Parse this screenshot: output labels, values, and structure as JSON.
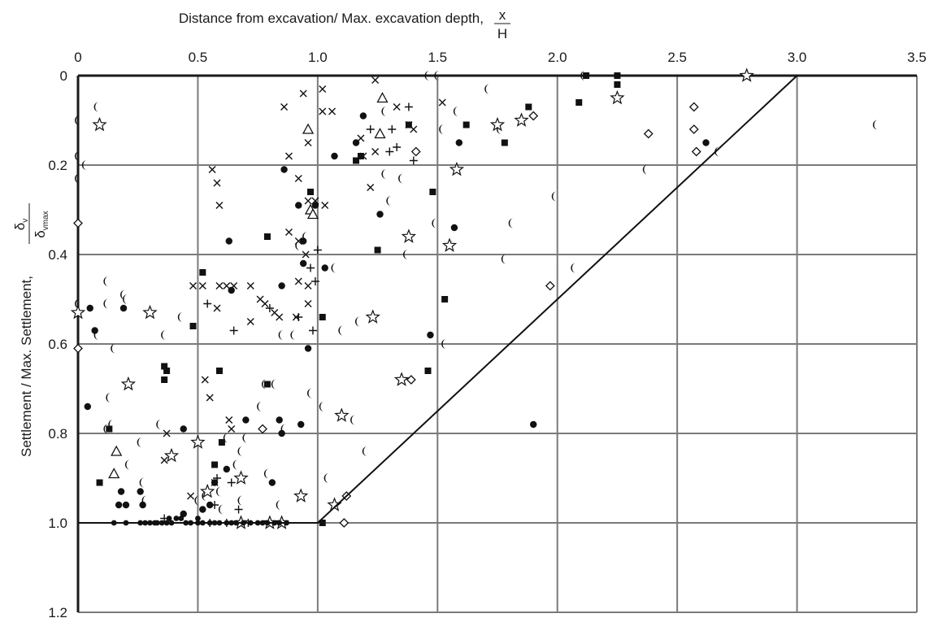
{
  "chart_data": {
    "type": "scatter",
    "xlabel": "Distance from excavation/ Max. excavation depth,",
    "xlabel_fraction": {
      "numerator": "x",
      "denominator": "H"
    },
    "ylabel": "Settlement / Max. Settlement,",
    "ylabel_fraction": {
      "numerator": "δ",
      "numerator_sub": "v",
      "denominator": "δ",
      "denominator_sub": "vmax"
    },
    "xlim": [
      0,
      3.5
    ],
    "ylim": [
      0,
      1.2
    ],
    "y_inverted": true,
    "x_axis_position": "top",
    "grid": true,
    "xticks": [
      0,
      0.5,
      1.0,
      1.5,
      2.0,
      2.5,
      3.0,
      3.5
    ],
    "xtick_labels": [
      "0",
      "0.5",
      "1.0",
      "1.5",
      "2.0",
      "2.5",
      "3.0",
      "3.5"
    ],
    "yticks": [
      0,
      0.2,
      0.4,
      0.6,
      0.8,
      1.0,
      1.2
    ],
    "ytick_labels": [
      "0",
      "0.2",
      "0.4",
      "0.6",
      "0.8",
      "1.0",
      "1.2"
    ],
    "envelope": {
      "x": [
        0,
        1.0,
        3.0
      ],
      "y": [
        1.0,
        1.0,
        0
      ]
    },
    "series": [
      {
        "marker": "moon",
        "points": [
          [
            0.08,
            0.07
          ],
          [
            0.03,
            0.2
          ],
          [
            0.0,
            0.23
          ],
          [
            0.0,
            0.51
          ],
          [
            0.08,
            0.58
          ],
          [
            0.13,
            0.72
          ],
          [
            0.12,
            0.79
          ],
          [
            0.15,
            0.61
          ],
          [
            0.12,
            0.46
          ],
          [
            0.12,
            0.51
          ],
          [
            0.2,
            0.5
          ],
          [
            0.19,
            0.49
          ],
          [
            0.36,
            0.58
          ],
          [
            0.21,
            0.87
          ],
          [
            0.26,
            0.82
          ],
          [
            0.27,
            0.91
          ],
          [
            0.28,
            0.95
          ],
          [
            0.5,
            0.95
          ],
          [
            0.53,
            0.94
          ],
          [
            0.59,
            0.93
          ],
          [
            0.6,
            0.97
          ],
          [
            0.62,
            0.81
          ],
          [
            0.66,
            0.87
          ],
          [
            0.68,
            0.84
          ],
          [
            0.7,
            0.81
          ],
          [
            0.76,
            0.74
          ],
          [
            0.78,
            0.69
          ],
          [
            0.82,
            0.69
          ],
          [
            0.86,
            0.79
          ],
          [
            0.85,
            0.58
          ],
          [
            0.95,
            0.36
          ],
          [
            0.92,
            0.38
          ],
          [
            0.9,
            0.58
          ],
          [
            0.97,
            0.71
          ],
          [
            1.02,
            0.74
          ],
          [
            1.1,
            0.57
          ],
          [
            1.15,
            0.77
          ],
          [
            1.07,
            0.43
          ],
          [
            1.28,
            0.22
          ],
          [
            1.3,
            0.28
          ],
          [
            1.35,
            0.23
          ],
          [
            1.37,
            0.4
          ],
          [
            1.49,
            0.33
          ],
          [
            1.52,
            0.12
          ],
          [
            1.53,
            0.6
          ],
          [
            1.56,
            0.38
          ],
          [
            1.58,
            0.08
          ],
          [
            1.71,
            0.03
          ],
          [
            1.76,
            0.12
          ],
          [
            1.78,
            0.41
          ],
          [
            1.81,
            0.33
          ],
          [
            1.99,
            0.27
          ],
          [
            2.07,
            0.43
          ],
          [
            2.37,
            0.21
          ],
          [
            2.67,
            0.17
          ],
          [
            3.33,
            0.11
          ],
          [
            1.2,
            0.84
          ],
          [
            1.28,
            0.08
          ],
          [
            1.17,
            0.55
          ],
          [
            1.04,
            0.9
          ],
          [
            1.5,
            0.0
          ],
          [
            1.46,
            0.0
          ],
          [
            2.11,
            0.0
          ],
          [
            0.0,
            0.1
          ],
          [
            0.0,
            0.18
          ],
          [
            0.43,
            0.54
          ],
          [
            0.34,
            0.78
          ],
          [
            0.14,
            0.78
          ],
          [
            0.79,
            0.89
          ],
          [
            0.84,
            0.96
          ],
          [
            0.68,
            0.95
          ]
        ]
      },
      {
        "marker": "dot",
        "points": [
          [
            0.05,
            0.52
          ],
          [
            0.04,
            0.74
          ],
          [
            0.07,
            0.57
          ],
          [
            0.17,
            0.96
          ],
          [
            0.2,
            0.96
          ],
          [
            0.18,
            0.93
          ],
          [
            0.26,
            0.93
          ],
          [
            0.27,
            0.96
          ],
          [
            0.44,
            0.79
          ],
          [
            0.44,
            0.98
          ],
          [
            0.52,
            0.97
          ],
          [
            0.55,
            0.96
          ],
          [
            0.57,
            0.91
          ],
          [
            0.62,
            0.88
          ],
          [
            0.63,
            0.37
          ],
          [
            0.64,
            0.48
          ],
          [
            0.7,
            0.77
          ],
          [
            0.85,
            0.47
          ],
          [
            0.84,
            0.77
          ],
          [
            0.85,
            0.8
          ],
          [
            0.86,
            0.21
          ],
          [
            0.92,
            0.29
          ],
          [
            0.94,
            0.37
          ],
          [
            0.96,
            0.61
          ],
          [
            0.99,
            0.29
          ],
          [
            1.03,
            0.43
          ],
          [
            1.07,
            0.18
          ],
          [
            1.16,
            0.15
          ],
          [
            1.19,
            0.09
          ],
          [
            1.26,
            0.31
          ],
          [
            1.57,
            0.34
          ],
          [
            1.59,
            0.15
          ],
          [
            1.9,
            0.78
          ],
          [
            2.62,
            0.15
          ],
          [
            0.81,
            0.91
          ],
          [
            0.93,
            0.78
          ],
          [
            1.47,
            0.58
          ],
          [
            0.94,
            0.42
          ],
          [
            0.19,
            0.52
          ]
        ]
      },
      {
        "marker": "square",
        "points": [
          [
            0.09,
            0.91
          ],
          [
            0.13,
            0.79
          ],
          [
            0.36,
            0.65
          ],
          [
            0.36,
            0.68
          ],
          [
            0.37,
            0.66
          ],
          [
            0.48,
            0.56
          ],
          [
            0.52,
            0.44
          ],
          [
            0.59,
            0.66
          ],
          [
            0.57,
            0.87
          ],
          [
            0.6,
            0.82
          ],
          [
            0.79,
            0.36
          ],
          [
            0.79,
            0.69
          ],
          [
            0.97,
            0.26
          ],
          [
            1.02,
            0.54
          ],
          [
            1.16,
            0.19
          ],
          [
            1.18,
            0.18
          ],
          [
            1.25,
            0.39
          ],
          [
            1.38,
            0.11
          ],
          [
            1.48,
            0.26
          ],
          [
            1.53,
            0.5
          ],
          [
            1.46,
            0.66
          ],
          [
            1.62,
            0.11
          ],
          [
            1.78,
            0.15
          ],
          [
            1.88,
            0.07
          ],
          [
            2.09,
            0.06
          ],
          [
            2.12,
            0.0
          ],
          [
            2.25,
            0.0
          ],
          [
            2.25,
            0.02
          ],
          [
            1.02,
            1.0
          ]
        ]
      },
      {
        "marker": "x",
        "points": [
          [
            0.56,
            0.21
          ],
          [
            0.58,
            0.24
          ],
          [
            0.59,
            0.29
          ],
          [
            0.48,
            0.47
          ],
          [
            0.52,
            0.47
          ],
          [
            0.59,
            0.47
          ],
          [
            0.62,
            0.47
          ],
          [
            0.65,
            0.47
          ],
          [
            0.72,
            0.47
          ],
          [
            0.76,
            0.5
          ],
          [
            0.78,
            0.51
          ],
          [
            0.82,
            0.53
          ],
          [
            0.72,
            0.55
          ],
          [
            0.84,
            0.54
          ],
          [
            0.91,
            0.54
          ],
          [
            0.92,
            0.46
          ],
          [
            0.96,
            0.47
          ],
          [
            0.96,
            0.51
          ],
          [
            0.88,
            0.35
          ],
          [
            0.92,
            0.37
          ],
          [
            0.95,
            0.4
          ],
          [
            0.96,
            0.28
          ],
          [
            0.99,
            0.28
          ],
          [
            1.03,
            0.29
          ],
          [
            1.06,
            0.08
          ],
          [
            1.02,
            0.08
          ],
          [
            1.02,
            0.03
          ],
          [
            0.94,
            0.04
          ],
          [
            0.86,
            0.07
          ],
          [
            0.88,
            0.18
          ],
          [
            0.92,
            0.23
          ],
          [
            0.96,
            0.15
          ],
          [
            1.18,
            0.14
          ],
          [
            1.19,
            0.18
          ],
          [
            1.24,
            0.17
          ],
          [
            1.24,
            0.01
          ],
          [
            1.33,
            0.07
          ],
          [
            1.38,
            0.11
          ],
          [
            1.4,
            0.12
          ],
          [
            1.22,
            0.25
          ],
          [
            0.58,
            0.52
          ],
          [
            0.53,
            0.68
          ],
          [
            0.55,
            0.72
          ],
          [
            0.37,
            0.8
          ],
          [
            0.36,
            0.86
          ],
          [
            0.47,
            0.94
          ],
          [
            0.57,
            0.91
          ],
          [
            0.63,
            0.77
          ],
          [
            0.64,
            0.79
          ],
          [
            1.52,
            0.06
          ]
        ]
      },
      {
        "marker": "plus",
        "points": [
          [
            0.54,
            0.51
          ],
          [
            0.65,
            0.57
          ],
          [
            0.8,
            0.52
          ],
          [
            0.92,
            0.54
          ],
          [
            0.97,
            0.43
          ],
          [
            0.99,
            0.46
          ],
          [
            1.0,
            0.39
          ],
          [
            0.98,
            0.57
          ],
          [
            1.22,
            0.12
          ],
          [
            1.3,
            0.17
          ],
          [
            1.33,
            0.16
          ],
          [
            1.31,
            0.12
          ],
          [
            1.38,
            0.07
          ],
          [
            1.4,
            0.19
          ],
          [
            0.64,
            0.91
          ],
          [
            0.67,
            0.97
          ],
          [
            0.58,
            0.9
          ],
          [
            0.36,
            0.99
          ],
          [
            0.55,
            1.0
          ],
          [
            0.62,
            1.0
          ],
          [
            0.71,
            1.0
          ],
          [
            0.57,
            0.96
          ]
        ]
      },
      {
        "marker": "triangle",
        "points": [
          [
            0.96,
            0.12
          ],
          [
            0.97,
            0.3
          ],
          [
            0.98,
            0.31
          ],
          [
            1.27,
            0.05
          ],
          [
            1.26,
            0.13
          ],
          [
            0.16,
            0.84
          ],
          [
            0.15,
            0.89
          ]
        ]
      },
      {
        "marker": "diamond",
        "points": [
          [
            0.0,
            0.33
          ],
          [
            0.0,
            0.61
          ],
          [
            1.39,
            0.68
          ],
          [
            1.41,
            0.17
          ],
          [
            1.9,
            0.09
          ],
          [
            2.38,
            0.13
          ],
          [
            2.57,
            0.07
          ],
          [
            2.57,
            0.12
          ],
          [
            2.58,
            0.17
          ],
          [
            1.97,
            0.47
          ],
          [
            0.77,
            0.79
          ],
          [
            1.12,
            0.94
          ],
          [
            1.11,
            1.0
          ]
        ]
      },
      {
        "marker": "star",
        "points": [
          [
            0.09,
            0.11
          ],
          [
            0.0,
            0.53
          ],
          [
            0.21,
            0.69
          ],
          [
            0.3,
            0.53
          ],
          [
            0.39,
            0.85
          ],
          [
            0.5,
            0.82
          ],
          [
            0.54,
            0.93
          ],
          [
            0.68,
            0.9
          ],
          [
            0.68,
            1.0
          ],
          [
            0.8,
            1.0
          ],
          [
            0.85,
            1.0
          ],
          [
            0.93,
            0.94
          ],
          [
            1.07,
            0.96
          ],
          [
            1.1,
            0.76
          ],
          [
            1.23,
            0.54
          ],
          [
            1.35,
            0.68
          ],
          [
            1.38,
            0.36
          ],
          [
            1.55,
            0.38
          ],
          [
            1.58,
            0.21
          ],
          [
            1.75,
            0.11
          ],
          [
            1.85,
            0.1
          ],
          [
            2.25,
            0.05
          ],
          [
            2.79,
            0.0
          ]
        ]
      },
      {
        "marker": "small-dot",
        "points": [
          [
            0.15,
            1.0
          ],
          [
            0.2,
            1.0
          ],
          [
            0.26,
            1.0
          ],
          [
            0.28,
            1.0
          ],
          [
            0.3,
            1.0
          ],
          [
            0.32,
            1.0
          ],
          [
            0.33,
            1.0
          ],
          [
            0.35,
            1.0
          ],
          [
            0.37,
            1.0
          ],
          [
            0.38,
            0.99
          ],
          [
            0.39,
            1.0
          ],
          [
            0.41,
            0.99
          ],
          [
            0.43,
            0.99
          ],
          [
            0.45,
            1.0
          ],
          [
            0.47,
            1.0
          ],
          [
            0.5,
            1.0
          ],
          [
            0.52,
            1.0
          ],
          [
            0.55,
            1.0
          ],
          [
            0.57,
            1.0
          ],
          [
            0.59,
            1.0
          ],
          [
            0.62,
            1.0
          ],
          [
            0.64,
            1.0
          ],
          [
            0.66,
            1.0
          ],
          [
            0.69,
            1.0
          ],
          [
            0.72,
            1.0
          ],
          [
            0.75,
            1.0
          ],
          [
            0.77,
            1.0
          ],
          [
            0.79,
            1.0
          ],
          [
            0.82,
            1.0
          ],
          [
            0.84,
            1.0
          ],
          [
            0.87,
            1.0
          ],
          [
            0.5,
            0.99
          ]
        ]
      }
    ]
  }
}
